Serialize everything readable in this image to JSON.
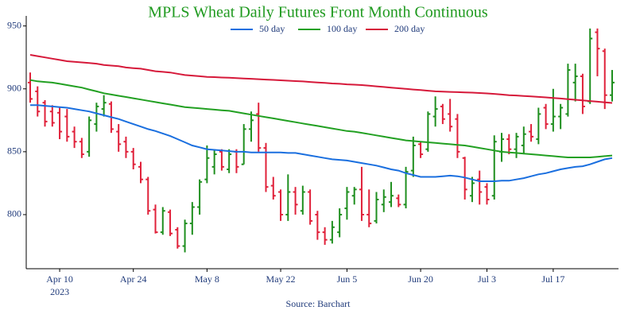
{
  "chart_data": {
    "type": "ohlc",
    "title": "MPLS Wheat Daily Futures Front Month Continuous",
    "title_color": "#1f9a1f",
    "source": "Source: Barchart",
    "x_year_label": "2023",
    "x": [
      "2023-04-03",
      "2023-04-04",
      "2023-04-05",
      "2023-04-06",
      "2023-04-10",
      "2023-04-11",
      "2023-04-12",
      "2023-04-13",
      "2023-04-14",
      "2023-04-17",
      "2023-04-18",
      "2023-04-19",
      "2023-04-20",
      "2023-04-21",
      "2023-04-24",
      "2023-04-25",
      "2023-04-26",
      "2023-04-27",
      "2023-04-28",
      "2023-05-01",
      "2023-05-02",
      "2023-05-03",
      "2023-05-04",
      "2023-05-05",
      "2023-05-08",
      "2023-05-09",
      "2023-05-10",
      "2023-05-11",
      "2023-05-12",
      "2023-05-15",
      "2023-05-16",
      "2023-05-17",
      "2023-05-18",
      "2023-05-19",
      "2023-05-22",
      "2023-05-23",
      "2023-05-24",
      "2023-05-25",
      "2023-05-26",
      "2023-05-30",
      "2023-05-31",
      "2023-06-01",
      "2023-06-02",
      "2023-06-05",
      "2023-06-06",
      "2023-06-07",
      "2023-06-08",
      "2023-06-09",
      "2023-06-12",
      "2023-06-13",
      "2023-06-14",
      "2023-06-15",
      "2023-06-16",
      "2023-06-20",
      "2023-06-21",
      "2023-06-22",
      "2023-06-23",
      "2023-06-26",
      "2023-06-27",
      "2023-06-28",
      "2023-06-29",
      "2023-06-30",
      "2023-07-03",
      "2023-07-05",
      "2023-07-06",
      "2023-07-07",
      "2023-07-10",
      "2023-07-11",
      "2023-07-12",
      "2023-07-13",
      "2023-07-14",
      "2023-07-17",
      "2023-07-18",
      "2023-07-19",
      "2023-07-20",
      "2023-07-21",
      "2023-07-24",
      "2023-07-25",
      "2023-07-26",
      "2023-07-27"
    ],
    "xticks": [
      {
        "value": "2023-04-10",
        "label": "Apr 10"
      },
      {
        "value": "2023-04-24",
        "label": "Apr 24"
      },
      {
        "value": "2023-05-08",
        "label": "May 8"
      },
      {
        "value": "2023-05-22",
        "label": "May 22"
      },
      {
        "value": "2023-06-05",
        "label": "Jun 5"
      },
      {
        "value": "2023-06-20",
        "label": "Jun 20"
      },
      {
        "value": "2023-07-03",
        "label": "Jul 3"
      },
      {
        "value": "2023-07-17",
        "label": "Jul 17"
      }
    ],
    "ylim": [
      757,
      958
    ],
    "yticks": [
      800,
      850,
      900,
      950
    ],
    "ohlc": {
      "up_color": "#1f8f1f",
      "down_color": "#e0213a",
      "open": [
        905,
        898,
        889,
        882,
        881,
        878,
        866,
        858,
        850,
        872,
        884,
        888,
        866,
        858,
        850,
        838,
        828,
        804,
        786,
        802,
        788,
        775,
        793,
        806,
        828,
        838,
        850,
        836,
        850,
        840,
        868,
        880,
        853,
        823,
        818,
        800,
        818,
        803,
        818,
        800,
        786,
        780,
        786,
        805,
        815,
        820,
        800,
        795,
        808,
        810,
        813,
        808,
        835,
        856,
        852,
        878,
        886,
        880,
        876,
        845,
        815,
        828,
        822,
        815,
        850,
        860,
        852,
        855,
        866,
        860,
        885,
        872,
        878,
        880,
        905,
        910,
        890,
        945,
        930,
        895
      ],
      "high": [
        913,
        902,
        891,
        887,
        885,
        884,
        870,
        861,
        878,
        889,
        895,
        890,
        872,
        862,
        853,
        842,
        830,
        808,
        806,
        804,
        790,
        796,
        810,
        828,
        855,
        852,
        852,
        852,
        852,
        872,
        882,
        889,
        857,
        830,
        820,
        832,
        822,
        823,
        820,
        803,
        790,
        795,
        805,
        822,
        822,
        838,
        820,
        818,
        820,
        826,
        816,
        838,
        862,
        858,
        882,
        894,
        888,
        892,
        880,
        846,
        830,
        835,
        825,
        863,
        865,
        864,
        865,
        870,
        872,
        885,
        888,
        900,
        888,
        920,
        920,
        912,
        948,
        948,
        932,
        915
      ],
      "low": [
        889,
        878,
        870,
        870,
        860,
        858,
        853,
        845,
        846,
        866,
        878,
        865,
        850,
        845,
        836,
        825,
        800,
        785,
        784,
        783,
        773,
        770,
        784,
        800,
        825,
        832,
        835,
        833,
        833,
        840,
        858,
        850,
        818,
        812,
        795,
        795,
        800,
        800,
        792,
        780,
        776,
        777,
        782,
        796,
        808,
        795,
        790,
        793,
        802,
        806,
        806,
        805,
        830,
        845,
        850,
        870,
        872,
        866,
        845,
        812,
        810,
        808,
        808,
        812,
        842,
        848,
        845,
        848,
        858,
        856,
        868,
        866,
        868,
        878,
        890,
        880,
        888,
        910,
        884,
        890
      ],
      "close": [
        892,
        882,
        874,
        873,
        866,
        862,
        858,
        848,
        875,
        886,
        889,
        868,
        856,
        850,
        840,
        828,
        803,
        786,
        803,
        785,
        775,
        793,
        806,
        826,
        845,
        848,
        838,
        848,
        838,
        868,
        875,
        853,
        822,
        815,
        800,
        818,
        808,
        818,
        795,
        786,
        780,
        790,
        800,
        818,
        820,
        800,
        793,
        812,
        814,
        815,
        808,
        834,
        855,
        848,
        880,
        884,
        876,
        870,
        850,
        820,
        825,
        818,
        812,
        858,
        860,
        852,
        862,
        864,
        862,
        880,
        872,
        878,
        885,
        915,
        910,
        886,
        940,
        932,
        895,
        905
      ]
    },
    "series": [
      {
        "name": "50 day",
        "color": "#1a6fdf",
        "values": [
          887,
          887,
          886.5,
          886,
          885.5,
          885,
          884,
          883,
          882,
          880.5,
          879,
          877.5,
          876,
          874,
          872,
          870,
          868,
          866.5,
          864.5,
          862.5,
          860,
          857.5,
          855,
          853.5,
          852,
          851.5,
          851,
          850.5,
          850,
          850,
          849.5,
          849.5,
          849.5,
          849.5,
          849.5,
          849,
          849,
          848,
          847,
          846,
          845,
          844,
          843.5,
          843,
          842,
          841,
          840,
          839,
          837.5,
          836,
          835,
          833,
          831.5,
          830,
          830,
          830,
          830.5,
          831,
          830.5,
          829.5,
          828,
          826.5,
          826.5,
          826.5,
          827,
          827,
          828,
          829,
          830.5,
          832,
          833,
          834.5,
          836,
          837,
          838,
          838.5,
          840,
          842,
          844,
          845
        ]
      },
      {
        "name": "100 day",
        "color": "#22a022",
        "values": [
          907,
          906,
          905.5,
          905,
          904,
          903,
          902,
          901,
          899.5,
          898,
          896.5,
          895.5,
          894.5,
          893.5,
          892.5,
          891.5,
          890.5,
          889.5,
          888.5,
          887.5,
          886.5,
          885.5,
          885,
          884.5,
          884,
          883.5,
          883,
          882.5,
          881.5,
          880.5,
          879.5,
          878.5,
          877.5,
          876.5,
          875.5,
          874.5,
          873.5,
          872.5,
          871.5,
          870.5,
          869.5,
          868.5,
          867.5,
          866.5,
          866,
          865,
          864,
          863,
          862,
          861,
          860,
          859,
          858.5,
          858,
          857.5,
          857,
          856.5,
          856,
          855.5,
          855,
          854,
          853,
          852,
          851,
          850,
          849.5,
          849,
          848.5,
          848,
          847.5,
          847,
          846.5,
          846,
          845.5,
          845.5,
          845.5,
          845.5,
          846,
          846.5,
          847
        ]
      },
      {
        "name": "200 day",
        "color": "#d6193a",
        "values": [
          927,
          926,
          925,
          924,
          923,
          922,
          921.5,
          921,
          920.5,
          920,
          919,
          918.5,
          918,
          917,
          916.5,
          916,
          915,
          914,
          913.5,
          913,
          912,
          911,
          910.5,
          910,
          909.5,
          909.3,
          909,
          908.8,
          908.5,
          908.2,
          908,
          907.7,
          907.4,
          907.1,
          906.8,
          906.5,
          906.2,
          905.9,
          905.5,
          905.1,
          904.7,
          904.3,
          904,
          903.6,
          903.3,
          903,
          902.5,
          902,
          901.5,
          901,
          900.5,
          900,
          899.5,
          899,
          898.5,
          898,
          897.8,
          897.6,
          897.4,
          897.2,
          897,
          896.7,
          896.4,
          896,
          895.5,
          895,
          894.7,
          894.3,
          894,
          893.6,
          893.2,
          892.8,
          892.3,
          891.8,
          891.3,
          890.8,
          890.3,
          889.8,
          889.3,
          888.8
        ]
      }
    ]
  }
}
